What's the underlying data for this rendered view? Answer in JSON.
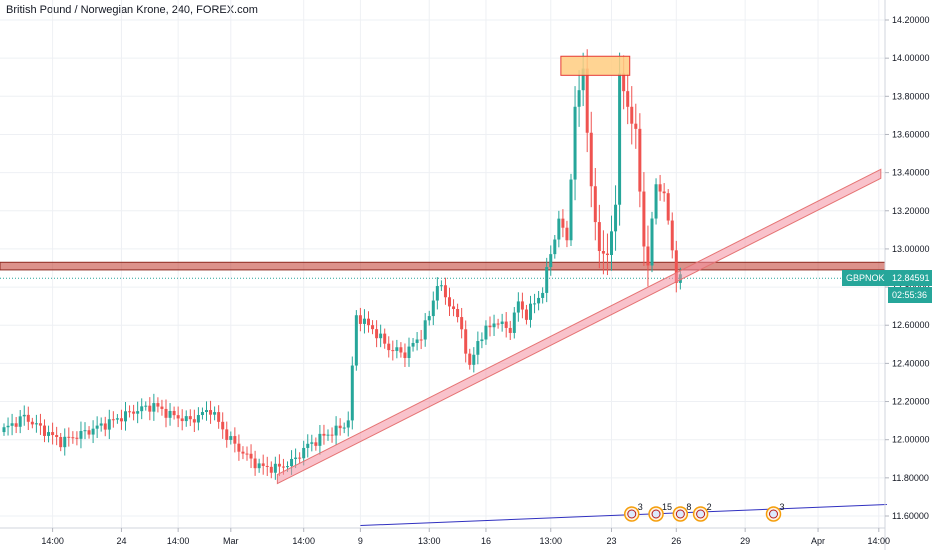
{
  "chart_data": {
    "type": "candlestick",
    "title": "British Pound / Norwegian Krone, 240, FOREX.com",
    "symbol": "GBPNOK",
    "last_price": "12.84591",
    "countdown": "02:55:36",
    "ylim": [
      11.56,
      14.32
    ],
    "y_ticks": [
      "14.20000",
      "14.00000",
      "13.80000",
      "13.60000",
      "13.40000",
      "13.20000",
      "13.00000",
      "12.80000",
      "12.60000",
      "12.40000",
      "12.20000",
      "12.00000",
      "11.80000",
      "11.60000"
    ],
    "y_tick_values": [
      14.2,
      14.0,
      13.8,
      13.6,
      13.4,
      13.2,
      13.0,
      12.8,
      12.6,
      12.4,
      12.2,
      12.0,
      11.8,
      11.6
    ],
    "x_ticks": [
      "14:00",
      "24",
      "14:00",
      "Mar",
      "14:00",
      "9",
      "13:00",
      "16",
      "13:00",
      "23",
      "26",
      "29",
      "Apr",
      "14:00"
    ],
    "x_tick_bars": [
      12,
      29,
      43,
      56,
      74,
      88,
      105,
      119,
      135,
      150,
      166,
      183,
      201,
      216
    ],
    "resistance_zone": [
      12.89,
      12.93
    ],
    "target_box": {
      "bar_start": 137.5,
      "bar_end": 154.5,
      "low": 13.91,
      "high": 14.01
    },
    "trendline": {
      "start": {
        "bar": 67.5,
        "price": 11.77
      },
      "end": {
        "bar": 216.5,
        "price": 13.37
      }
    },
    "blue_line": {
      "start": {
        "bar": 88,
        "price": 11.55
      },
      "end": {
        "bar": 218,
        "price": 11.66
      }
    },
    "event_markers": [
      {
        "bar": 155,
        "count": "3"
      },
      {
        "bar": 161,
        "count": "15"
      },
      {
        "bar": 167,
        "count": "8"
      },
      {
        "bar": 172,
        "count": "2"
      },
      {
        "bar": 190,
        "count": "3"
      }
    ],
    "colors": {
      "up": "#26a69a",
      "down": "#ef5350",
      "zone": "#c0392b",
      "trend": "#f48fa0",
      "target": "#ffcc80",
      "blue": "#3030c0"
    }
  }
}
